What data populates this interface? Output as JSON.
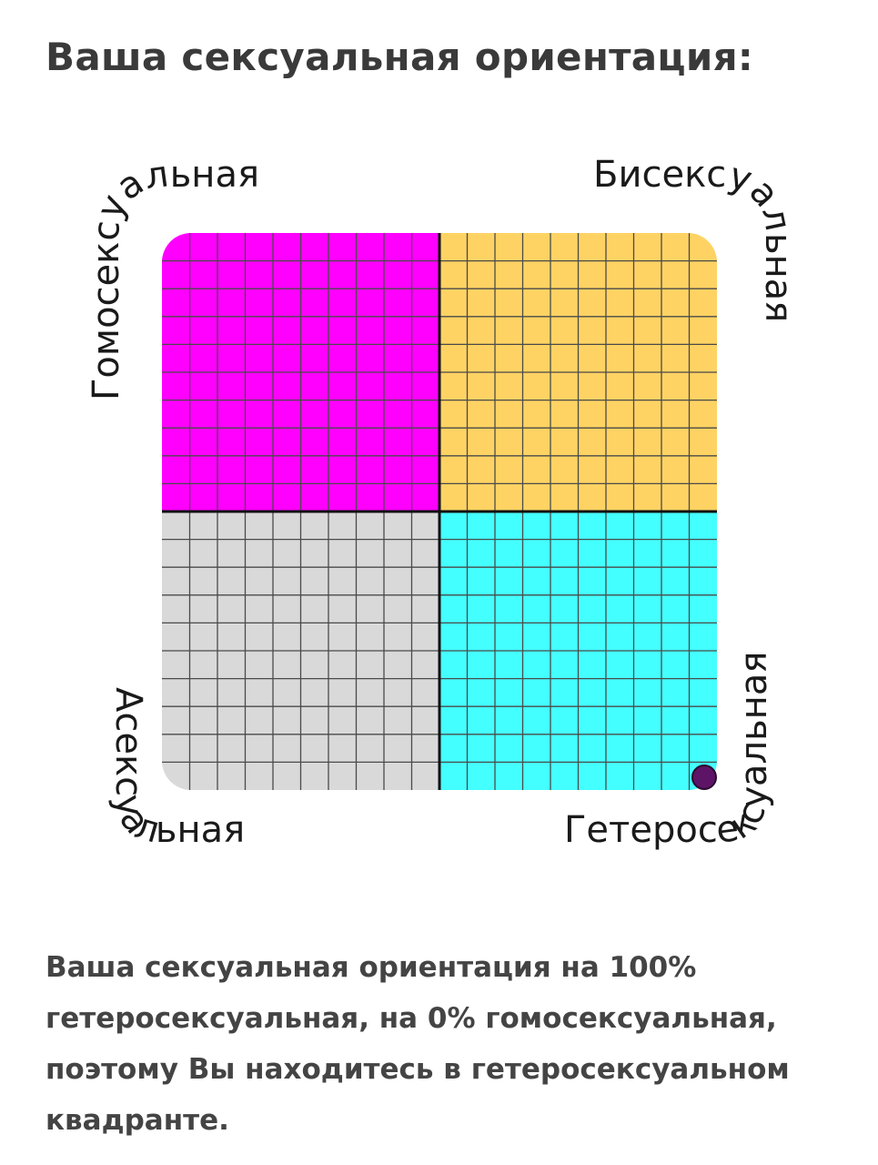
{
  "title": "Ваша сексуальная ориентация:",
  "chart": {
    "quadrants": [
      {
        "id": "homosexual",
        "label": "Гомосексуальная",
        "color": "#ff00ff"
      },
      {
        "id": "bisexual",
        "label": "Бисексуальная",
        "color": "#ffd363"
      },
      {
        "id": "asexual",
        "label": "Асексуальная",
        "color": "#d9d9d9"
      },
      {
        "id": "heterosexual",
        "label": "Гетеросексуальная",
        "color": "#44ffff"
      }
    ],
    "grid_divisions_per_quadrant": 10,
    "result_marker": {
      "color": "#5e1466",
      "heterosexual_percent": 100,
      "homosexual_percent": 0
    }
  },
  "result": {
    "text": "Ваша сексуальная ориентация на 100% гетеросексуальная, на 0% гомосексуальная, поэтому Вы находитесь в гетеросексуальном квадранте."
  }
}
